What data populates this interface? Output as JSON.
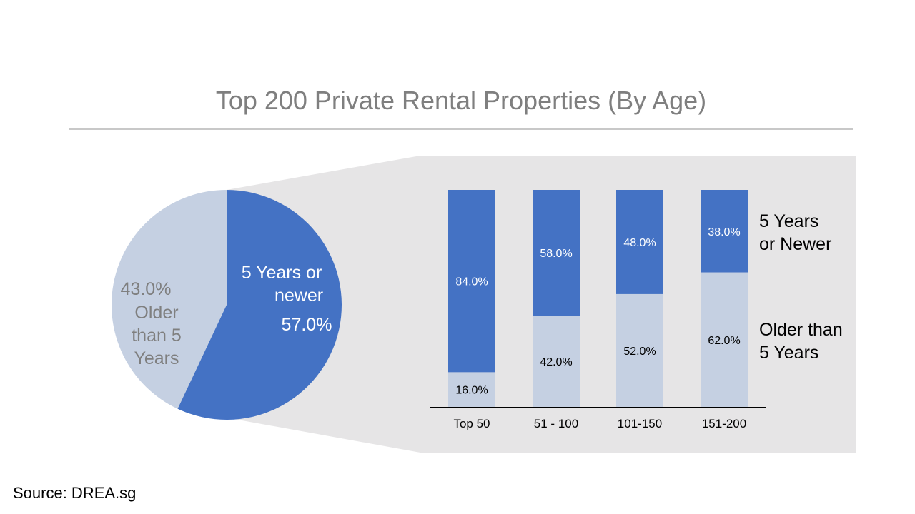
{
  "title": "Top 200 Private Rental Properties (By Age)",
  "source": "Source: DREA.sg",
  "colors": {
    "newer": "#4472c4",
    "older": "#c5d0e2",
    "panel": "#e6e5e6",
    "title": "#7f7f7f"
  },
  "chart_data": [
    {
      "type": "pie",
      "slices": [
        {
          "label_lines": [
            "5 Years or",
            "newer"
          ],
          "value": 57.0,
          "value_label": "57.0%",
          "color": "#4472c4"
        },
        {
          "label_lines": [
            "Older",
            "than 5",
            "Years"
          ],
          "value": 43.0,
          "value_label": "43.0%",
          "color": "#c5d0e2"
        }
      ]
    },
    {
      "type": "bar",
      "stacked": true,
      "percent": true,
      "categories": [
        "Top 50",
        "51 - 100",
        "101-150",
        "151-200"
      ],
      "series": [
        {
          "name_lines": [
            "Older than",
            "5 Years"
          ],
          "values": [
            16.0,
            42.0,
            52.0,
            62.0
          ],
          "labels": [
            "16.0%",
            "42.0%",
            "52.0%",
            "62.0%"
          ],
          "color": "#c5d0e2"
        },
        {
          "name_lines": [
            "5 Years",
            "or Newer"
          ],
          "values": [
            84.0,
            58.0,
            48.0,
            38.0
          ],
          "labels": [
            "84.0%",
            "58.0%",
            "48.0%",
            "38.0%"
          ],
          "color": "#4472c4"
        }
      ],
      "ylim": [
        0,
        100
      ],
      "legend": "right"
    }
  ]
}
